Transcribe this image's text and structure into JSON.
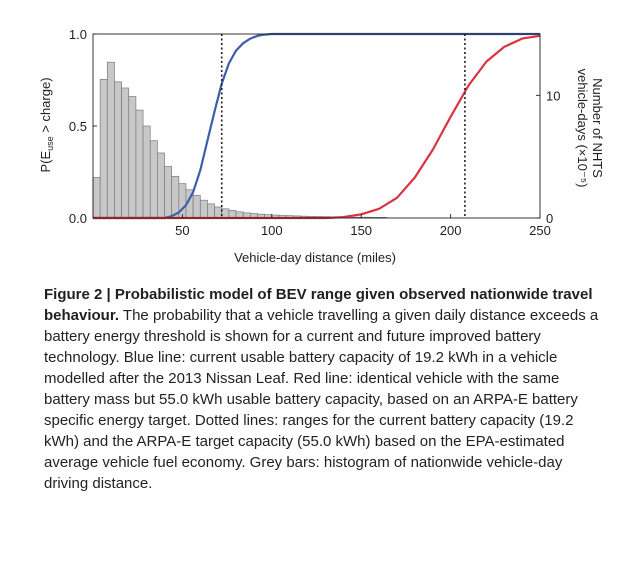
{
  "chart_data": {
    "type": "bar+line",
    "xlabel": "Vehicle-day distance (miles)",
    "ylabel_left_main": "P(E",
    "ylabel_left_sub": "use",
    "ylabel_left_tail": " > charge)",
    "ylabel_right_line1": "Number of NHTS",
    "ylabel_right_line2": "vehicle-days (×10⁻⁵)",
    "xlim": [
      0,
      250
    ],
    "ylim_left": [
      0,
      1.0
    ],
    "ylim_right": [
      0,
      15
    ],
    "x_ticks": [
      50,
      100,
      150,
      200,
      250
    ],
    "x_tick_labels": [
      "50",
      "100",
      "150",
      "200",
      "250"
    ],
    "y_left_ticks": [
      0.0,
      0.5,
      1.0
    ],
    "y_left_tick_labels": [
      "0.0",
      "0.5",
      "1.0"
    ],
    "y_right_ticks": [
      0,
      10
    ],
    "y_right_tick_labels": [
      "0",
      "10"
    ],
    "histogram": {
      "name": "Grey bars",
      "color": "#c8c8c8",
      "bin_width": 4,
      "bin_starts": [
        0,
        4,
        8,
        12,
        16,
        20,
        24,
        28,
        32,
        36,
        40,
        44,
        48,
        52,
        56,
        60,
        64,
        68,
        72,
        76,
        80,
        84,
        88,
        92,
        96,
        100,
        104,
        108,
        112,
        116,
        120,
        124,
        128,
        132,
        136,
        140,
        144,
        148,
        152,
        156,
        160
      ],
      "values": [
        3.3,
        11.3,
        12.7,
        11.1,
        10.6,
        9.9,
        8.8,
        7.5,
        6.3,
        5.3,
        4.2,
        3.4,
        2.8,
        2.3,
        1.85,
        1.45,
        1.15,
        0.9,
        0.75,
        0.62,
        0.5,
        0.42,
        0.36,
        0.31,
        0.27,
        0.24,
        0.21,
        0.19,
        0.17,
        0.15,
        0.13,
        0.12,
        0.11,
        0.1,
        0.09,
        0.08,
        0.07,
        0.06,
        0.06,
        0.05,
        0.05
      ]
    },
    "series": [
      {
        "color": "#3b5fa6",
        "x": [
          0,
          40,
          44,
          48,
          52,
          56,
          60,
          64,
          68,
          72,
          76,
          80,
          84,
          88,
          92,
          96,
          100,
          250
        ],
        "y": [
          0,
          0,
          0.01,
          0.03,
          0.07,
          0.14,
          0.26,
          0.42,
          0.58,
          0.73,
          0.84,
          0.91,
          0.95,
          0.975,
          0.99,
          0.997,
          1.0,
          1.0
        ]
      },
      {
        "color": "#d9333f",
        "x": [
          0,
          130,
          140,
          150,
          160,
          170,
          180,
          190,
          200,
          210,
          220,
          230,
          240,
          250
        ],
        "y": [
          0,
          0,
          0.005,
          0.02,
          0.05,
          0.11,
          0.22,
          0.37,
          0.55,
          0.72,
          0.85,
          0.93,
          0.975,
          0.99
        ]
      }
    ],
    "reference_lines": [
      {
        "x": 72,
        "style": "dotted",
        "color": "#231f20"
      },
      {
        "x": 208,
        "style": "dotted",
        "color": "#231f20"
      }
    ],
    "grid": false
  },
  "caption": {
    "title": "Figure 2 | Probabilistic model of BEV range given observed nationwide travel behaviour.",
    "body": " The probability that a vehicle travelling a given daily distance exceeds a battery energy threshold is shown for a current and future improved battery technology. Blue line: current usable battery capacity of 19.2 kWh in a vehicle modelled after the 2013 Nissan Leaf. Red line: identical vehicle with the same battery mass but 55.0 kWh usable battery capacity, based on an ARPA-E battery specific energy target. Dotted lines: ranges for the current battery capacity (19.2 kWh) and the ARPA-E target capacity (55.0 kWh) based on the EPA-estimated average vehicle fuel economy. Grey bars: histogram of nationwide vehicle-day driving distance."
  }
}
